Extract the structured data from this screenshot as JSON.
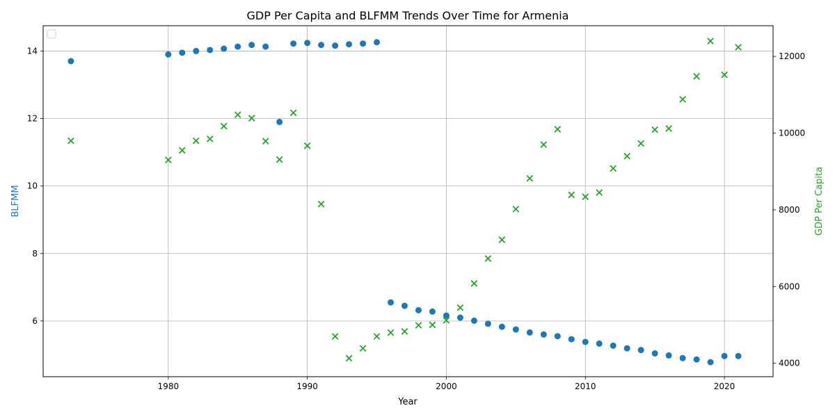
{
  "chart_data": {
    "type": "scatter",
    "title": "GDP Per Capita and BLFMM Trends Over Time for Armenia",
    "xlabel": "Year",
    "ylabel_left": "BLFMM",
    "ylabel_right": "GDP Per Capita",
    "xlim": [
      1971,
      2023.5
    ],
    "ylim_left": [
      4.35,
      14.75
    ],
    "ylim_right": [
      3650,
      12800
    ],
    "xticks": [
      1980,
      1990,
      2000,
      2010,
      2020
    ],
    "yticks_left": [
      6,
      8,
      10,
      12,
      14
    ],
    "yticks_right": [
      4000,
      6000,
      8000,
      10000,
      12000
    ],
    "grid": true,
    "legend": "top-left",
    "colors": {
      "blfmm": "#1f77b4",
      "gdp": "#2ca02c"
    },
    "series": [
      {
        "name": "BLFMM",
        "axis": "left",
        "marker": "circle",
        "x": [
          1973,
          1980,
          1981,
          1982,
          1983,
          1984,
          1985,
          1986,
          1987,
          1988,
          1989,
          1990,
          1991,
          1992,
          1993,
          1994,
          1995,
          1996,
          1997,
          1998,
          1999,
          2000,
          2001,
          2002,
          2003,
          2004,
          2005,
          2006,
          2007,
          2008,
          2009,
          2010,
          2011,
          2012,
          2013,
          2014,
          2015,
          2016,
          2017,
          2018,
          2019,
          2020,
          2021
        ],
        "values": [
          13.7,
          13.9,
          13.95,
          14.0,
          14.03,
          14.07,
          14.13,
          14.18,
          14.13,
          11.9,
          14.22,
          14.24,
          14.18,
          14.16,
          14.2,
          14.22,
          14.26,
          6.55,
          6.45,
          6.32,
          6.28,
          6.16,
          6.1,
          6.01,
          5.92,
          5.83,
          5.75,
          5.66,
          5.6,
          5.55,
          5.46,
          5.38,
          5.33,
          5.27,
          5.19,
          5.14,
          5.04,
          4.98,
          4.9,
          4.86,
          4.78,
          4.96,
          4.96
        ]
      },
      {
        "name": "GDP Per Capita",
        "axis": "right",
        "marker": "x",
        "x": [
          1973,
          1980,
          1981,
          1982,
          1983,
          1984,
          1985,
          1986,
          1987,
          1988,
          1989,
          1990,
          1991,
          1992,
          1993,
          1994,
          1995,
          1996,
          1997,
          1998,
          1999,
          2000,
          2001,
          2002,
          2003,
          2004,
          2005,
          2006,
          2007,
          2008,
          2009,
          2010,
          2011,
          2012,
          2013,
          2014,
          2015,
          2016,
          2017,
          2018,
          2019,
          2020,
          2021
        ],
        "values": [
          9800,
          9300,
          9550,
          9800,
          9850,
          10180,
          10480,
          10390,
          9790,
          9310,
          10530,
          9670,
          8150,
          4700,
          4130,
          4390,
          4700,
          4800,
          4830,
          4990,
          5000,
          5120,
          5450,
          6080,
          6730,
          7220,
          8020,
          8820,
          9700,
          10100,
          8390,
          8340,
          8450,
          9080,
          9400,
          9730,
          10090,
          10120,
          10880,
          11480,
          12400,
          11520,
          12240
        ]
      }
    ]
  }
}
